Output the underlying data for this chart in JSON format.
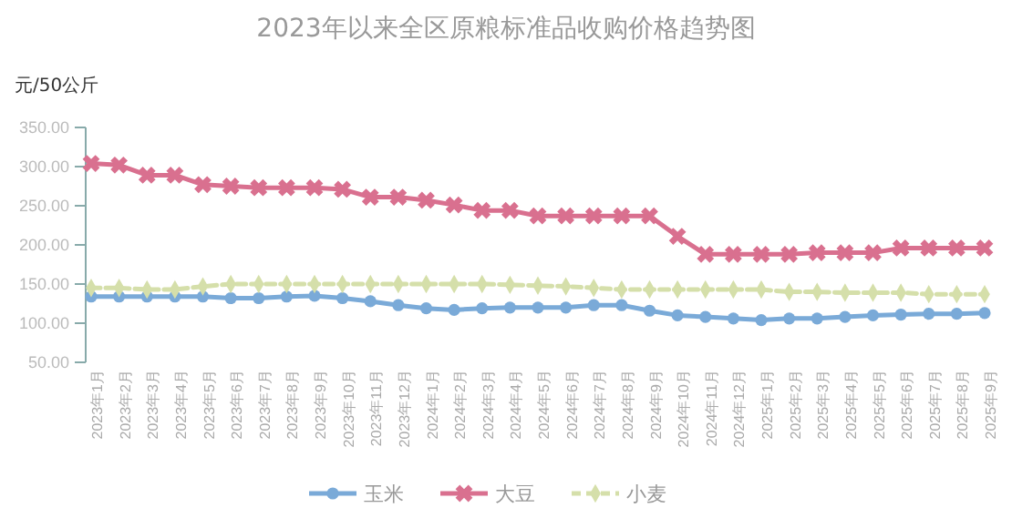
{
  "chart_data": {
    "type": "line",
    "title": "2023年以来全区原粮标准品收购价格趋势图",
    "ylabel": "元/50公斤",
    "categories": [
      "2023年1月",
      "2023年2月",
      "2023年3月",
      "2023年4月",
      "2023年5月",
      "2023年6月",
      "2023年7月",
      "2023年8月",
      "2023年9月",
      "2023年10月",
      "2023年11月",
      "2023年12月",
      "2024年1月",
      "2024年2月",
      "2024年3月",
      "2024年4月",
      "2024年5月",
      "2024年6月",
      "2024年7月",
      "2024年8月",
      "2024年9月",
      "2024年10月",
      "2024年11月",
      "2024年12月",
      "2025年1月",
      "2025年2月",
      "2025年3月",
      "2025年4月",
      "2025年5月",
      "2025年6月",
      "2025年7月",
      "2025年8月",
      "2025年9月"
    ],
    "series": [
      {
        "name": "玉米",
        "color": "#7aaad8",
        "marker": "circle",
        "line_style": "solid",
        "values": [
          134,
          134,
          134,
          134,
          134,
          132,
          132,
          134,
          135,
          132,
          128,
          123,
          119,
          117,
          119,
          120,
          120,
          120,
          123,
          123,
          116,
          110,
          108,
          106,
          104,
          106,
          106,
          108,
          110,
          111,
          112,
          112,
          113
        ]
      },
      {
        "name": "大豆",
        "color": "#d9708f",
        "marker": "cross",
        "line_style": "solid",
        "values": [
          304,
          302,
          289,
          289,
          277,
          275,
          273,
          273,
          273,
          271,
          261,
          261,
          257,
          251,
          244,
          244,
          237,
          237,
          237,
          237,
          237,
          211,
          188,
          188,
          188,
          188,
          190,
          190,
          190,
          196,
          196,
          196,
          196
        ]
      },
      {
        "name": "小麦",
        "color": "#d5dfaa",
        "marker": "diamond",
        "line_style": "dashed",
        "values": [
          145,
          145,
          143,
          143,
          147,
          150,
          150,
          150,
          150,
          150,
          150,
          150,
          150,
          150,
          150,
          149,
          148,
          147,
          145,
          143,
          143,
          143,
          143,
          143,
          143,
          140,
          140,
          139,
          139,
          139,
          137,
          137,
          137
        ]
      }
    ],
    "ylim": [
      50,
      350
    ],
    "yticks": [
      {
        "value": 50,
        "label": "50.00"
      },
      {
        "value": 100,
        "label": "100.00"
      },
      {
        "value": 150,
        "label": "150.00"
      },
      {
        "value": 200,
        "label": "200.00"
      },
      {
        "value": 250,
        "label": "250.00"
      },
      {
        "value": 300,
        "label": "300.00"
      },
      {
        "value": 350,
        "label": "350.00"
      }
    ],
    "grid": false,
    "legend": "bottom"
  }
}
